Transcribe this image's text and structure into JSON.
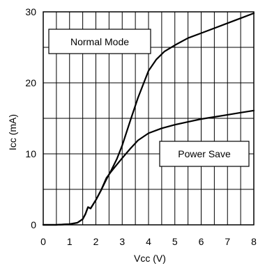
{
  "chart_data": {
    "type": "line",
    "xlabel": "Vcc (V)",
    "ylabel": "Icc (mA)",
    "xlim": [
      0,
      8
    ],
    "ylim": [
      0,
      30
    ],
    "x_ticks": [
      0,
      1,
      2,
      3,
      4,
      5,
      6,
      7,
      8
    ],
    "y_ticks": [
      0,
      10,
      20,
      30
    ],
    "x_minor_step": 0.5,
    "y_minor_step": 5,
    "grid": true,
    "series": [
      {
        "name": "Normal Mode",
        "x": [
          0,
          0.5,
          1.0,
          1.3,
          1.5,
          1.6,
          1.7,
          1.8,
          2.0,
          2.2,
          2.4,
          2.6,
          2.8,
          3.0,
          3.3,
          3.6,
          4.0,
          4.3,
          4.6,
          5.0,
          5.5,
          6.0,
          6.5,
          7.0,
          7.5,
          8.0
        ],
        "y": [
          0,
          0,
          0.1,
          0.3,
          0.8,
          1.5,
          2.5,
          2.3,
          3.5,
          4.9,
          6.4,
          7.8,
          9.3,
          11.2,
          14.6,
          17.9,
          21.7,
          23.3,
          24.4,
          25.3,
          26.3,
          27.0,
          27.7,
          28.4,
          29.1,
          29.8
        ]
      },
      {
        "name": "Power Save",
        "x": [
          0,
          0.5,
          1.0,
          1.3,
          1.5,
          1.6,
          1.7,
          1.8,
          2.0,
          2.2,
          2.4,
          2.6,
          2.8,
          3.0,
          3.3,
          3.6,
          4.0,
          4.5,
          5.0,
          5.5,
          6.0,
          6.5,
          7.0,
          7.5,
          8.0
        ],
        "y": [
          0,
          0,
          0.1,
          0.3,
          0.8,
          1.5,
          2.5,
          2.3,
          3.5,
          4.9,
          6.6,
          7.6,
          8.5,
          9.4,
          10.7,
          11.9,
          12.9,
          13.6,
          14.1,
          14.5,
          14.9,
          15.2,
          15.5,
          15.8,
          16.1
        ]
      }
    ],
    "annotations": [
      {
        "text": "Normal Mode",
        "series": "Normal Mode"
      },
      {
        "text": "Power Save",
        "series": "Power Save"
      }
    ]
  }
}
